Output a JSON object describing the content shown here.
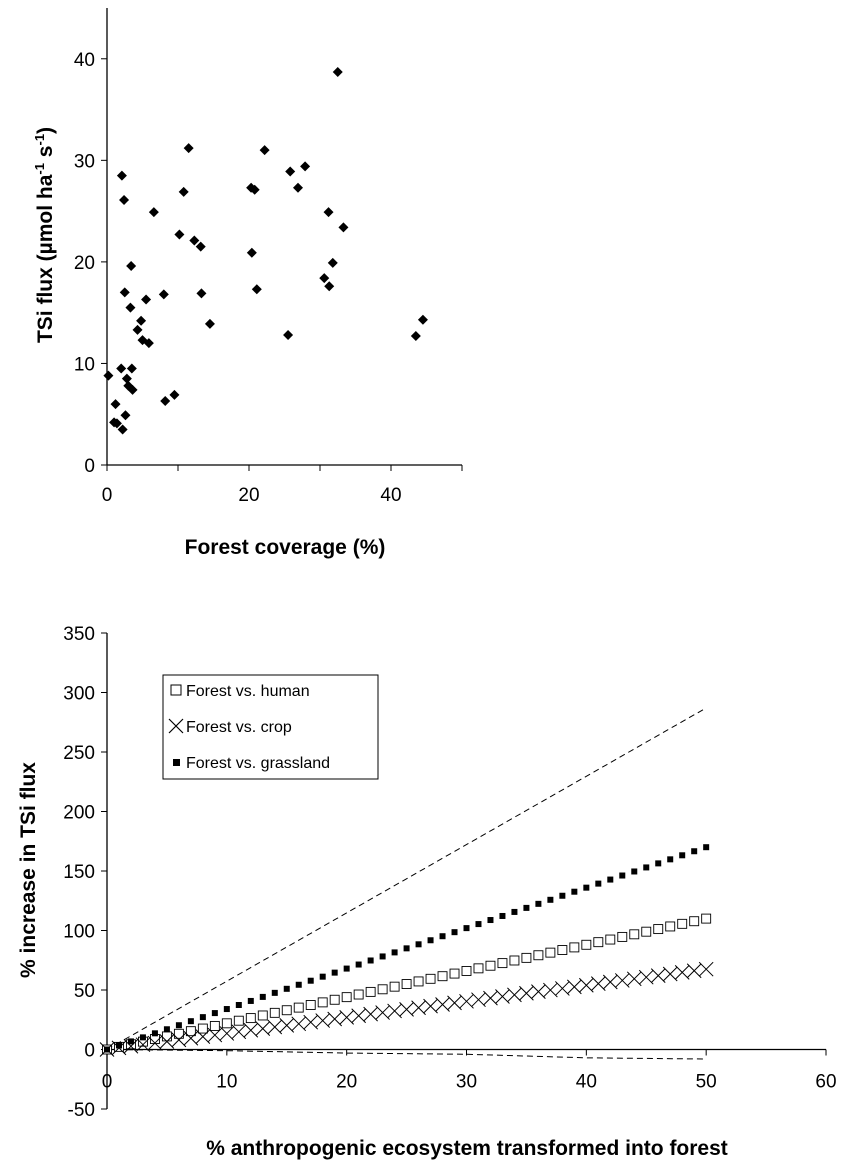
{
  "chart_data": [
    {
      "type": "scatter",
      "title": "",
      "xlabel": "Forest coverage (%)",
      "ylabel": "TSi flux (µmol ha",
      "ylabel_unit_sup1": "-1",
      "ylabel_mid": " s",
      "ylabel_unit_sup2": "-1",
      "ylabel_end": ")",
      "xlim": [
        0,
        50
      ],
      "ylim": [
        0,
        45
      ],
      "xticks": [
        0,
        20,
        40
      ],
      "yticks": [
        0,
        10,
        20,
        30,
        40
      ],
      "grid": false,
      "marker": "diamond",
      "marker_color": "#000000",
      "points": [
        [
          0.2,
          8.8
        ],
        [
          1.0,
          4.2
        ],
        [
          1.2,
          6.0
        ],
        [
          1.4,
          4.1
        ],
        [
          2.0,
          9.5
        ],
        [
          2.1,
          28.5
        ],
        [
          2.2,
          3.5
        ],
        [
          2.4,
          26.1
        ],
        [
          2.5,
          17.0
        ],
        [
          2.6,
          4.9
        ],
        [
          2.8,
          8.5
        ],
        [
          3.0,
          7.8
        ],
        [
          3.3,
          15.5
        ],
        [
          3.4,
          19.6
        ],
        [
          3.5,
          9.5
        ],
        [
          3.6,
          7.4
        ],
        [
          4.3,
          13.3
        ],
        [
          4.8,
          14.2
        ],
        [
          5.0,
          12.3
        ],
        [
          5.5,
          16.3
        ],
        [
          5.9,
          12.0
        ],
        [
          6.6,
          24.9
        ],
        [
          8.0,
          16.8
        ],
        [
          8.2,
          6.3
        ],
        [
          9.5,
          6.9
        ],
        [
          10.2,
          22.7
        ],
        [
          10.8,
          26.9
        ],
        [
          11.5,
          31.2
        ],
        [
          12.3,
          22.1
        ],
        [
          13.2,
          21.5
        ],
        [
          13.3,
          16.9
        ],
        [
          14.5,
          13.9
        ],
        [
          20.3,
          27.3
        ],
        [
          20.4,
          20.9
        ],
        [
          20.8,
          27.1
        ],
        [
          21.1,
          17.3
        ],
        [
          22.2,
          31.0
        ],
        [
          25.5,
          12.8
        ],
        [
          25.8,
          28.9
        ],
        [
          26.9,
          27.3
        ],
        [
          27.9,
          29.4
        ],
        [
          30.6,
          18.4
        ],
        [
          31.2,
          24.9
        ],
        [
          31.3,
          17.6
        ],
        [
          31.8,
          19.9
        ],
        [
          32.5,
          38.7
        ],
        [
          33.3,
          23.4
        ],
        [
          43.5,
          12.7
        ],
        [
          44.5,
          14.3
        ]
      ]
    },
    {
      "type": "line",
      "title": "",
      "xlabel": "% anthropogenic ecosystem transformed into forest",
      "ylabel": "% increase in TSi flux",
      "xlim": [
        0,
        60
      ],
      "ylim": [
        -50,
        350
      ],
      "xticks": [
        0,
        10,
        20,
        30,
        40,
        50,
        60
      ],
      "yticks": [
        -50,
        0,
        50,
        100,
        150,
        200,
        250,
        300,
        350
      ],
      "grid": false,
      "legend_position": "top-left",
      "x_step": 1,
      "x_max": 50,
      "series": [
        {
          "name": "Forest vs. human",
          "marker": "open-square",
          "slope": 2.2
        },
        {
          "name": "Forest vs. crop",
          "marker": "x",
          "slope": 1.35
        },
        {
          "name": "Forest vs. grassland",
          "marker": "filled-square",
          "slope": 3.4
        }
      ],
      "bounds": [
        {
          "style": "dashed",
          "x": [
            0,
            50
          ],
          "y": [
            0,
            287
          ]
        },
        {
          "style": "dashed",
          "x": [
            0,
            10,
            20,
            30,
            40,
            50
          ],
          "y": [
            0,
            -1,
            -3,
            -4,
            -7,
            -8
          ]
        }
      ]
    }
  ]
}
